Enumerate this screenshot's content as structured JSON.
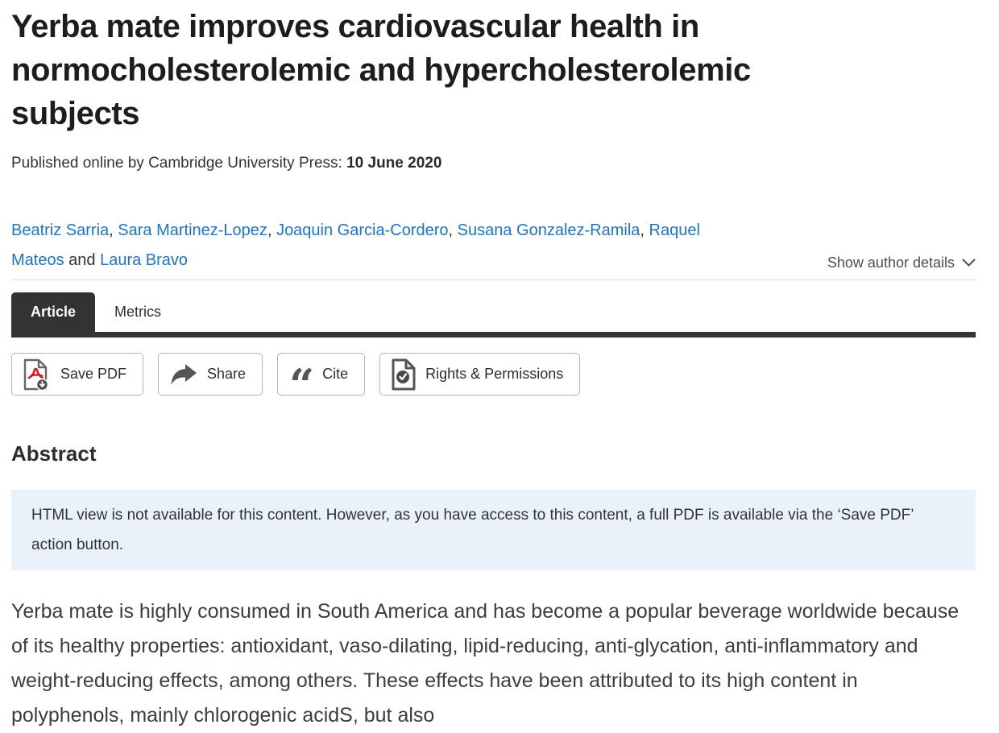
{
  "colors": {
    "link_blue": "#1b75c9",
    "tab_dark": "#333333",
    "notice_bg": "#e9f2fb",
    "pdf_red": "#d6201f",
    "button_border": "#b3b3b3"
  },
  "header": {
    "title": "Yerba mate improves cardiovascular health in normocholesterolemic and hypercholesterolemic subjects",
    "published_prefix": "Published online by Cambridge University Press:",
    "published_date": "10 June 2020",
    "authors": [
      "Beatriz Sarria",
      "Sara Martinez-Lopez",
      "Joaquin Garcia-Cordero",
      "Susana Gonzalez-Ramila",
      "Raquel Mateos",
      "Laura Bravo"
    ],
    "authors_conjunction": "and",
    "show_author_details": "Show author details"
  },
  "tabs": [
    {
      "label": "Article",
      "active": true
    },
    {
      "label": "Metrics",
      "active": false
    }
  ],
  "actions": {
    "save_pdf": "Save PDF",
    "share": "Share",
    "cite": "Cite",
    "rights": "Rights & Permissions"
  },
  "abstract": {
    "heading": "Abstract",
    "notice": "HTML view is not available for this content. However, as you have access to this content, a full PDF is available via the ‘Save PDF’ action button.",
    "body": "Yerba mate is highly consumed in South America and has become a popular beverage worldwide because of its healthy properties: antioxidant, vaso-dilating, lipid-reducing, anti-glycation, anti-inflammatory and weight-reducing effects, among others. These effects have been attributed to its high content in polyphenols, mainly chlorogenic acidS, but also"
  }
}
